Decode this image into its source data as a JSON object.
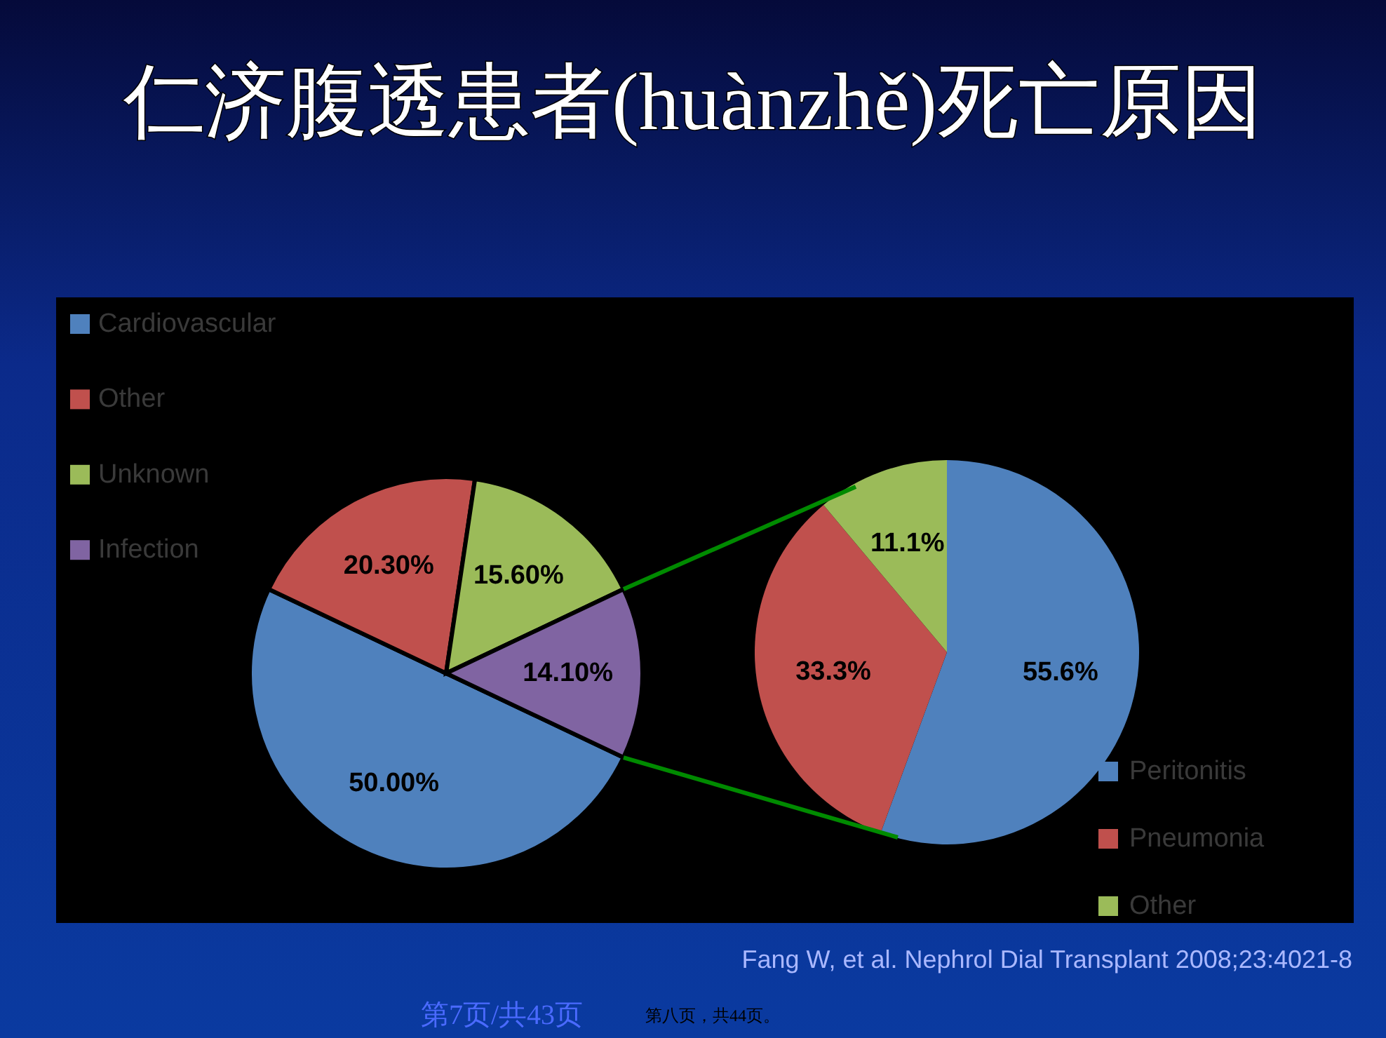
{
  "chart_data": [
    {
      "type": "pie",
      "title": "仁济腹透患者(huànzhě)死亡原因",
      "categories": [
        "Cardiovascular",
        "Other",
        "Unknown",
        "Infection"
      ],
      "values": [
        50.0,
        20.3,
        15.6,
        14.1
      ],
      "value_labels": [
        "50.00%",
        "20.30%",
        "15.60%",
        "14.10%"
      ],
      "colors": [
        "#4f81bd",
        "#c0504d",
        "#9bbb59",
        "#8064a2"
      ],
      "legend": "top left",
      "annotations": [
        "Fang W, et al. Nephrol Dial Transplant 2008;23:4021-8",
        "第7页/共43页",
        "第八页，共44页。"
      ]
    },
    {
      "type": "pie",
      "categories": [
        "Peritonitis",
        "Pneumonia",
        "Other"
      ],
      "values": [
        55.6,
        33.3,
        11.1
      ],
      "value_labels": [
        "55.6%",
        "33.3%",
        "11.1%"
      ],
      "colors": [
        "#4f81bd",
        "#c0504d",
        "#9bbb59"
      ],
      "legend": "bottom right"
    }
  ]
}
